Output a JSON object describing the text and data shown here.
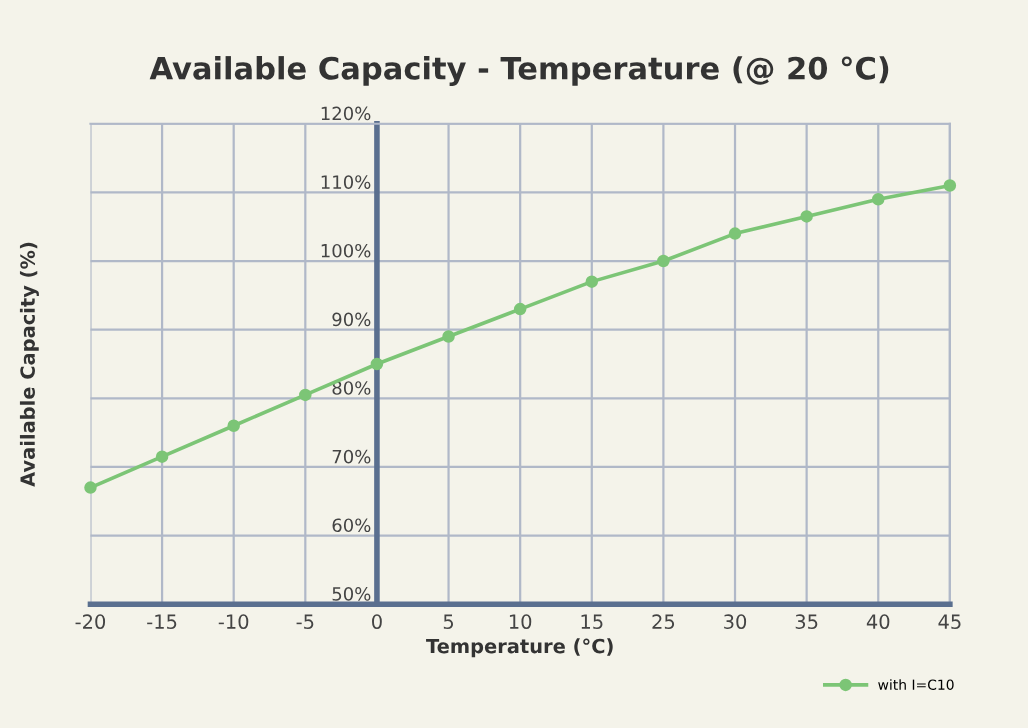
{
  "chart_data": {
    "type": "line",
    "title": "Available Capacity - Temperature (@ 20 °C)",
    "xlabel": "Temperature (°C)",
    "ylabel": "Available Capacity (%)",
    "categories": [
      "-20",
      "-15",
      "-10",
      "-5",
      "0",
      "5",
      "10",
      "15",
      "25",
      "30",
      "35",
      "40",
      "45"
    ],
    "series": [
      {
        "name": "with I=C10",
        "color": "#7cc576",
        "values": [
          67,
          71.5,
          76,
          80.5,
          85,
          89,
          93,
          97,
          100,
          104,
          106.5,
          109,
          111
        ]
      }
    ],
    "ylim": [
      50,
      120
    ],
    "yticks": [
      {
        "value": 50,
        "label": "50%"
      },
      {
        "value": 60,
        "label": "60%"
      },
      {
        "value": 70,
        "label": "70%"
      },
      {
        "value": 80,
        "label": "80%"
      },
      {
        "value": 90,
        "label": "90%"
      },
      {
        "value": 100,
        "label": "100%"
      },
      {
        "value": 110,
        "label": "110%"
      },
      {
        "value": 120,
        "label": "120%"
      }
    ],
    "grid": true,
    "legend": "bottom right",
    "marker": "circle",
    "line_style": "solid"
  }
}
